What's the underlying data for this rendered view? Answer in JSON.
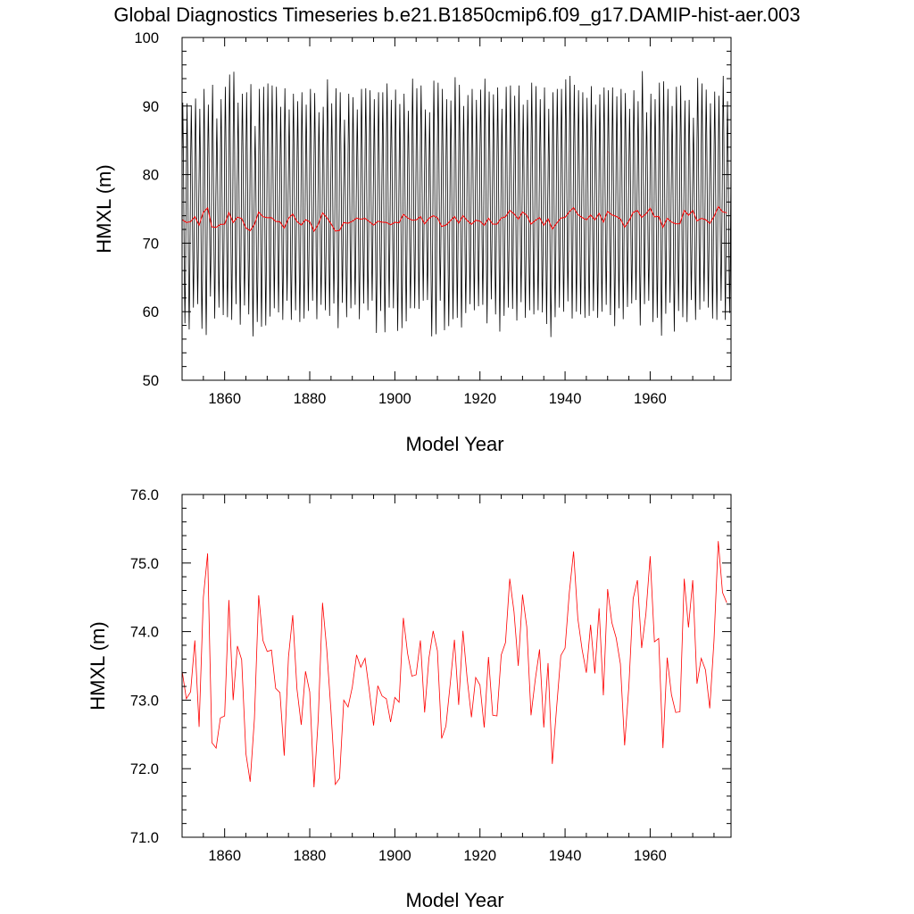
{
  "title": "Global Diagnostics Timeseries b.e21.B1850cmip6.f09_g17.DAMIP-hist-aer.003",
  "chart_data": [
    {
      "type": "line",
      "xlabel": "Model Year",
      "ylabel": "HMXL (m)",
      "xlim": [
        1850,
        1979
      ],
      "ylim": [
        50,
        100
      ],
      "x_ticks": [
        1860,
        1880,
        1900,
        1920,
        1940,
        1960
      ],
      "y_ticks": [
        50,
        60,
        70,
        80,
        90,
        100
      ],
      "x_tick_labels": [
        "1860",
        "1880",
        "1900",
        "1920",
        "1940",
        "1960"
      ],
      "y_tick_labels": [
        "50",
        "60",
        "70",
        "80",
        "90",
        "100"
      ],
      "series": [
        {
          "description_monthly": "monthly values oscillating seasonally",
          "color": "#000000",
          "x_start": 1850,
          "step": 0.0833333,
          "seasonal_max_by_year": [
            90.5,
            90.4,
            90.1,
            91.1,
            89.6,
            92.5,
            90.2,
            93.1,
            88.2,
            91.0,
            92.8,
            94.6,
            95.0,
            90.5,
            91.8,
            92.0,
            93.2,
            87.1,
            92.5,
            92.8,
            93.3,
            93.0,
            92.8,
            89.9,
            92.6,
            89.5,
            91.8,
            90.7,
            92.0,
            90.2,
            92.5,
            91.9,
            89.1,
            89.9,
            93.9,
            90.4,
            92.6,
            92.0,
            88.0,
            91.8,
            91.3,
            89.5,
            92.5,
            92.6,
            92.3,
            91.0,
            92.0,
            92.0,
            93.3,
            90.9,
            92.4,
            90.3,
            91.8,
            89.3,
            94.0,
            92.6,
            93.0,
            89.5,
            89.1,
            93.7,
            93.4,
            92.5,
            91.0,
            90.8,
            94.2,
            93.1,
            90.0,
            91.6,
            92.5,
            90.9,
            92.4,
            94.0,
            92.1,
            91.7,
            92.7,
            89.6,
            92.8,
            93.0,
            91.5,
            93.0,
            90.2,
            90.9,
            93.4,
            92.9,
            91.0,
            92.7,
            89.6,
            92.0,
            92.5,
            92.5,
            93.9,
            94.4,
            93.1,
            92.3,
            92.0,
            91.2,
            92.9,
            90.2,
            91.7,
            92.7,
            92.3,
            92.7,
            91.4,
            92.5,
            91.9,
            89.6,
            92.3,
            90.7,
            95.1,
            89.1,
            91.8,
            91.0,
            93.4,
            93.6,
            92.5,
            90.0,
            92.8,
            93.0,
            90.8,
            90.9,
            88.3,
            94.1,
            93.3,
            92.4,
            90.4,
            92.1,
            91.5,
            94.4,
            90.7,
            91.6
          ],
          "seasonal_min_by_year": [
            58.3,
            57.4,
            60.6,
            61.1,
            57.5,
            56.6,
            62.2,
            59.0,
            60.6,
            59.5,
            59.2,
            58.8,
            61.1,
            58.1,
            60.9,
            59.6,
            56.4,
            58.5,
            57.8,
            58.0,
            59.3,
            60.5,
            59.9,
            58.8,
            61.6,
            58.8,
            60.2,
            58.5,
            59.0,
            60.1,
            61.6,
            58.9,
            61.0,
            60.2,
            59.4,
            61.2,
            57.6,
            61.3,
            59.2,
            60.5,
            61.0,
            58.9,
            61.2,
            60.2,
            61.6,
            56.9,
            60.1,
            57.0,
            60.6,
            60.5,
            57.2,
            57.6,
            58.6,
            60.5,
            60.5,
            60.4,
            61.6,
            61.7,
            56.4,
            56.7,
            61.6,
            57.3,
            57.9,
            58.9,
            59.1,
            57.7,
            59.8,
            61.1,
            60.2,
            60.8,
            61.0,
            58.3,
            61.8,
            59.6,
            57.1,
            59.4,
            60.6,
            60.4,
            58.7,
            61.4,
            59.1,
            60.2,
            59.6,
            60.2,
            59.9,
            58.2,
            56.3,
            59.2,
            60.6,
            60.0,
            61.5,
            59.0,
            60.0,
            59.6,
            59.1,
            59.4,
            60.1,
            59.1,
            60.0,
            61.0,
            59.5,
            57.9,
            60.5,
            58.9,
            60.7,
            61.2,
            61.7,
            58.0,
            61.1,
            61.6,
            58.5,
            59.1,
            56.5,
            59.7,
            61.3,
            57.1,
            60.1,
            59.2,
            58.5,
            61.7,
            58.8,
            60.3,
            61.5,
            60.6,
            59.0,
            58.8,
            61.6,
            58.8,
            59.8,
            59.0
          ]
        },
        {
          "name_ref": "annual_mean",
          "color": "#ff0000"
        }
      ]
    },
    {
      "type": "line",
      "xlabel": "Model Year",
      "ylabel": "HMXL (m)",
      "xlim": [
        1850,
        1979
      ],
      "ylim": [
        71,
        76
      ],
      "x_ticks": [
        1860,
        1880,
        1900,
        1920,
        1940,
        1960
      ],
      "y_ticks": [
        71,
        72,
        73,
        74,
        75,
        76
      ],
      "x_tick_labels": [
        "1860",
        "1880",
        "1900",
        "1920",
        "1940",
        "1960"
      ],
      "y_tick_labels": [
        "71.0",
        "72.0",
        "73.0",
        "74.0",
        "75.0",
        "76.0"
      ],
      "series": [
        {
          "color": "#ff0000",
          "x_start": 1850,
          "step": 1,
          "values": [
            73.43,
            73.02,
            73.12,
            73.87,
            72.61,
            74.5,
            75.14,
            72.38,
            72.3,
            72.74,
            72.77,
            74.46,
            73.0,
            73.79,
            73.59,
            72.22,
            71.81,
            72.73,
            74.53,
            73.87,
            73.71,
            73.73,
            73.17,
            73.11,
            72.19,
            73.63,
            74.24,
            73.16,
            72.64,
            73.42,
            73.12,
            71.73,
            72.73,
            74.42,
            73.74,
            72.83,
            71.77,
            71.86,
            73.0,
            72.9,
            73.19,
            73.66,
            73.48,
            73.61,
            73.14,
            72.63,
            73.21,
            73.06,
            73.02,
            72.68,
            73.04,
            72.97,
            74.2,
            73.68,
            73.35,
            73.37,
            73.87,
            72.82,
            73.61,
            74.01,
            73.72,
            72.44,
            72.62,
            73.23,
            73.88,
            72.93,
            74.01,
            73.31,
            72.75,
            73.33,
            73.22,
            72.6,
            73.63,
            72.78,
            72.77,
            73.66,
            73.84,
            74.77,
            74.29,
            73.5,
            74.54,
            74.07,
            72.78,
            73.3,
            73.74,
            72.6,
            73.54,
            72.07,
            72.88,
            73.65,
            73.76,
            74.57,
            75.17,
            74.19,
            73.74,
            73.4,
            74.1,
            73.39,
            74.34,
            73.07,
            74.62,
            74.13,
            73.91,
            73.53,
            72.34,
            73.21,
            74.48,
            74.75,
            73.76,
            74.26,
            75.1,
            73.85,
            73.9,
            72.3,
            73.62,
            73.08,
            72.82,
            72.83,
            74.77,
            74.06,
            74.75,
            73.24,
            73.61,
            73.44,
            72.88,
            73.87,
            75.32,
            74.57,
            74.42
          ]
        }
      ]
    }
  ]
}
